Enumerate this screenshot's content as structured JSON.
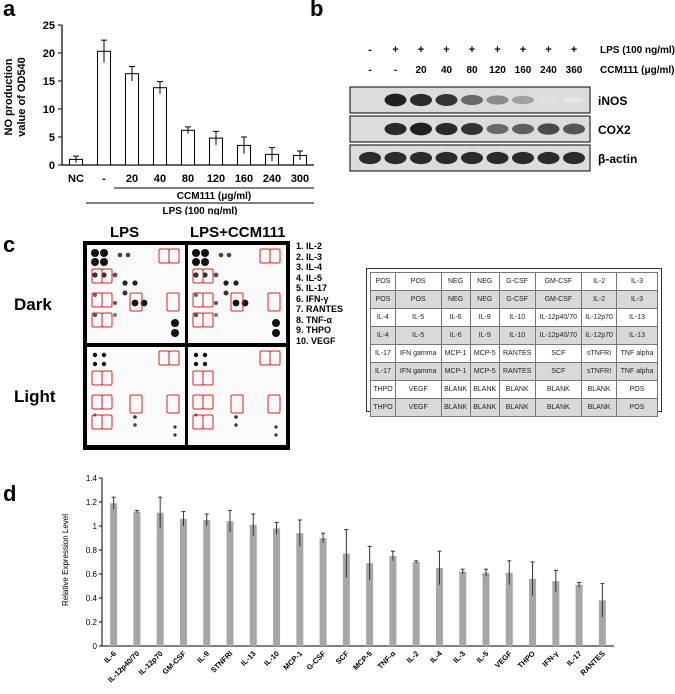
{
  "panel_a": {
    "label": "a",
    "chart_data": {
      "type": "bar",
      "categories": [
        "NC",
        "-",
        "20",
        "40",
        "80",
        "120",
        "160",
        "240",
        "300"
      ],
      "values": [
        1.0,
        20.3,
        16.3,
        13.8,
        6.2,
        4.8,
        3.5,
        1.9,
        1.7
      ],
      "errors": [
        0.6,
        2.0,
        1.3,
        1.1,
        0.6,
        1.2,
        1.5,
        1.2,
        0.8
      ],
      "ylabel_line1": "NO production",
      "ylabel_line2": "value of OD540",
      "ylim": [
        0,
        25
      ],
      "yticks": [
        "0",
        "5",
        "10",
        "15",
        "20",
        "25"
      ],
      "group1_label": "CCM111 (μg/ml)",
      "group2_label": "LPS (100 ng/ml)"
    }
  },
  "panel_b": {
    "label": "b",
    "lps_signs": [
      "-",
      "+",
      "+",
      "+",
      "+",
      "+",
      "+",
      "+",
      "+"
    ],
    "ccm_values": [
      "-",
      "-",
      "20",
      "40",
      "80",
      "120",
      "160",
      "240",
      "360"
    ],
    "lps_label": "LPS (100 ng/ml)",
    "ccm_label": "CCM111 (μg/ml)",
    "bands": [
      "iNOS",
      "COX2",
      "β-actin"
    ],
    "inos_intensity": [
      0.0,
      0.95,
      0.9,
      0.85,
      0.6,
      0.45,
      0.35,
      0.05,
      0.03
    ],
    "cox2_intensity": [
      0.0,
      0.9,
      0.95,
      0.9,
      0.85,
      0.6,
      0.65,
      0.75,
      0.7
    ],
    "actin_intensity": [
      0.9,
      0.9,
      0.9,
      0.9,
      0.9,
      0.9,
      0.9,
      0.9,
      0.9
    ]
  },
  "panel_c": {
    "label": "c",
    "col_lps": "LPS",
    "col_lps_ccm": "LPS+CCM111",
    "row_dark": "Dark",
    "row_light": "Light",
    "legend": [
      "1.  IL-2",
      "2.  IL-3",
      "3.  IL-4",
      "4.  IL-5",
      "5.  IL-17",
      "6.  IFN-γ",
      "7.  RANTES",
      "8.  TNF-α",
      "9.  THPO",
      "10. VEGF"
    ],
    "array_table": [
      [
        "POS",
        "POS",
        "NEG",
        "NEG",
        "G-CSF",
        "GM-CSF",
        "IL-2",
        "IL-3"
      ],
      [
        "POS",
        "POS",
        "NEG",
        "NEG",
        "G-CSF",
        "GM-CSF",
        "IL-2",
        "IL-3"
      ],
      [
        "IL-4",
        "IL-5",
        "IL-6",
        "IL-9",
        "IL-10",
        "IL-12p40/70",
        "IL-12p70",
        "IL-13"
      ],
      [
        "IL-4",
        "IL-5",
        "IL-6",
        "IL-9",
        "IL-10",
        "IL-12p40/70",
        "IL-12p70",
        "IL-13"
      ],
      [
        "IL-17",
        "IFN gamma",
        "MCP-1",
        "MCP-5",
        "RANTES",
        "SCF",
        "sTNFRI",
        "TNF alpha"
      ],
      [
        "IL-17",
        "IFN gamma",
        "MCP-1",
        "MCP-5",
        "RANTES",
        "SCF",
        "sTNFRI",
        "TNF alpha"
      ],
      [
        "THPO",
        "VEGF",
        "BLANK",
        "BLANK",
        "BLANK",
        "BLANK",
        "BLANK",
        "POS"
      ],
      [
        "THPO",
        "VEGF",
        "BLANK",
        "BLANK",
        "BLANK",
        "BLANK",
        "BLANK",
        "POS"
      ]
    ]
  },
  "panel_d": {
    "label": "d",
    "chart_data": {
      "type": "bar",
      "categories": [
        "IL-6",
        "IL-12p40/70",
        "IL-12p70",
        "GM-CSF",
        "IL-9",
        "STNFRI",
        "IL-13",
        "IL-10",
        "MCP-1",
        "G-CSF",
        "SCF",
        "MCP-5",
        "TNF-α",
        "IL-2",
        "IL-4",
        "IL-3",
        "IL-5",
        "VEGF",
        "THPO",
        "IFN-γ",
        "IL-17",
        "RANTES"
      ],
      "values": [
        1.19,
        1.12,
        1.11,
        1.06,
        1.05,
        1.04,
        1.01,
        0.98,
        0.94,
        0.9,
        0.77,
        0.69,
        0.75,
        0.7,
        0.65,
        0.62,
        0.61,
        0.61,
        0.56,
        0.54,
        0.51,
        0.38
      ],
      "errors": [
        0.05,
        0.01,
        0.13,
        0.06,
        0.05,
        0.09,
        0.09,
        0.05,
        0.11,
        0.04,
        0.2,
        0.14,
        0.04,
        0.01,
        0.14,
        0.02,
        0.03,
        0.1,
        0.14,
        0.09,
        0.02,
        0.14
      ],
      "ylabel": "Relative Expression Level",
      "ylim": [
        0,
        1.4
      ],
      "yticks": [
        "0",
        "0.2",
        "0.4",
        "0.6",
        "0.8",
        "1",
        "1.2",
        "1.4"
      ]
    }
  }
}
